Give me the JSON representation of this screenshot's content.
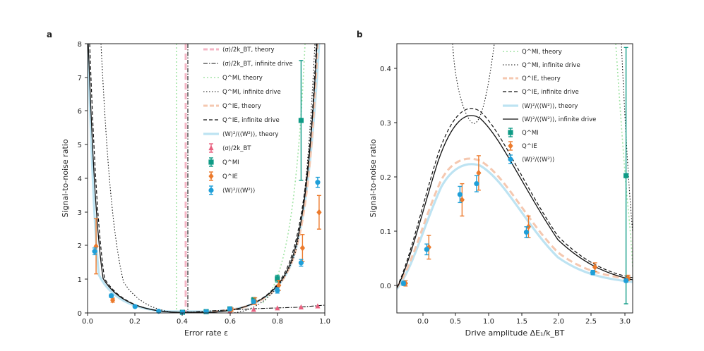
{
  "chart_data": [
    {
      "type": "line",
      "panel_label": "a",
      "xlabel": "Error rate ε",
      "ylabel": "Signal-to-noise ratio",
      "xlim": [
        0,
        1
      ],
      "ylim": [
        0,
        8
      ],
      "xticks": [
        "0.0",
        "0.2",
        "0.4",
        "0.6",
        "0.8",
        "1.0"
      ],
      "yticks": [
        "0",
        "1",
        "2",
        "3",
        "4",
        "5",
        "6",
        "7",
        "8"
      ],
      "legend_position": "top-right",
      "legend": [
        "⟨σ⟩/2k_BT, theory",
        "⟨σ⟩/2k_BT, infinite drive",
        "Q^MI, theory",
        "Q^MI, infinite drive",
        "Q^IE, theory",
        "Q^IE, infinite drive",
        "⟨W⟩²/⟨⟨W²⟩⟩, theory",
        "⟨σ⟩/2k_BT",
        "Q^MI",
        "Q^IE",
        "⟨W⟩²/⟨⟨W²⟩⟩"
      ],
      "series_points": [
        {
          "name": "⟨σ⟩/2k_BT",
          "x": [
            0.6,
            0.7,
            0.8,
            0.9,
            0.97
          ],
          "y": [
            0.05,
            0.1,
            0.14,
            0.17,
            0.2
          ]
        },
        {
          "name": "Q^MI",
          "x": [
            0.4,
            0.5,
            0.6,
            0.7,
            0.8,
            0.9
          ],
          "y": [
            0.02,
            0.04,
            0.12,
            0.38,
            1.02,
            5.72
          ],
          "err": [
            0.01,
            0.02,
            0.05,
            0.08,
            0.1,
            1.78
          ]
        },
        {
          "name": "Q^IE",
          "x": [
            0.03,
            0.1,
            0.6,
            0.7,
            0.8,
            0.9,
            0.97
          ],
          "y": [
            1.98,
            0.38,
            0.1,
            0.35,
            0.82,
            1.93,
            2.99
          ],
          "err": [
            0.82,
            0.06,
            0.05,
            0.1,
            0.15,
            0.4,
            0.5
          ]
        },
        {
          "name": "⟨W⟩²/⟨⟨W²⟩⟩",
          "x": [
            0.03,
            0.1,
            0.2,
            0.3,
            0.4,
            0.5,
            0.6,
            0.7,
            0.8,
            0.9,
            0.97
          ],
          "y": [
            1.83,
            0.51,
            0.19,
            0.05,
            0.02,
            0.04,
            0.12,
            0.34,
            0.67,
            1.49,
            3.88
          ],
          "err": [
            0.1,
            0.05,
            0.03,
            0.02,
            0.01,
            0.02,
            0.03,
            0.05,
            0.08,
            0.1,
            0.15
          ]
        }
      ]
    },
    {
      "type": "line",
      "panel_label": "b",
      "xlabel": "Drive amplitude ΔE₁/k_BT",
      "ylabel": "Signal-to-noise ratio",
      "xlim": [
        -0.45,
        3.1
      ],
      "ylim": [
        -0.05,
        0.45
      ],
      "xticks": [
        "0.0",
        "0.5",
        "1.0",
        "1.5",
        "2.0",
        "2.5",
        "3.0"
      ],
      "yticks": [
        "0.0",
        "0.1",
        "0.2",
        "0.3",
        "0.4"
      ],
      "legend_position": "top-right",
      "legend": [
        "Q^MI, theory",
        "Q^MI, infinite drive",
        "Q^IE, theory",
        "Q^IE, infinite drive",
        "⟨W⟩²/⟨⟨W²⟩⟩, theory",
        "⟨W⟩²/⟨⟨W²⟩⟩, infinite drive",
        "Q^MI",
        "Q^IE",
        "⟨W⟩²/⟨⟨W²⟩⟩"
      ],
      "series_points": [
        {
          "name": "Q^MI",
          "x": [
            3.0
          ],
          "y": [
            0.205
          ],
          "err": [
            0.238
          ]
        },
        {
          "name": "Q^IE",
          "x": [
            -0.35,
            0.0,
            0.5,
            0.75,
            1.5,
            2.5,
            3.0
          ],
          "y": [
            0.005,
            0.072,
            0.16,
            0.21,
            0.11,
            0.035,
            0.015
          ],
          "err": [
            0.005,
            0.022,
            0.03,
            0.032,
            0.02,
            0.008,
            0.005
          ]
        },
        {
          "name": "⟨W⟩²/⟨⟨W²⟩⟩",
          "x": [
            -0.35,
            0.0,
            0.5,
            0.75,
            1.5,
            2.5,
            3.0
          ],
          "y": [
            0.005,
            0.068,
            0.17,
            0.19,
            0.1,
            0.025,
            0.01
          ],
          "err": [
            0.004,
            0.01,
            0.015,
            0.015,
            0.01,
            0.004,
            0.003
          ]
        }
      ]
    }
  ]
}
